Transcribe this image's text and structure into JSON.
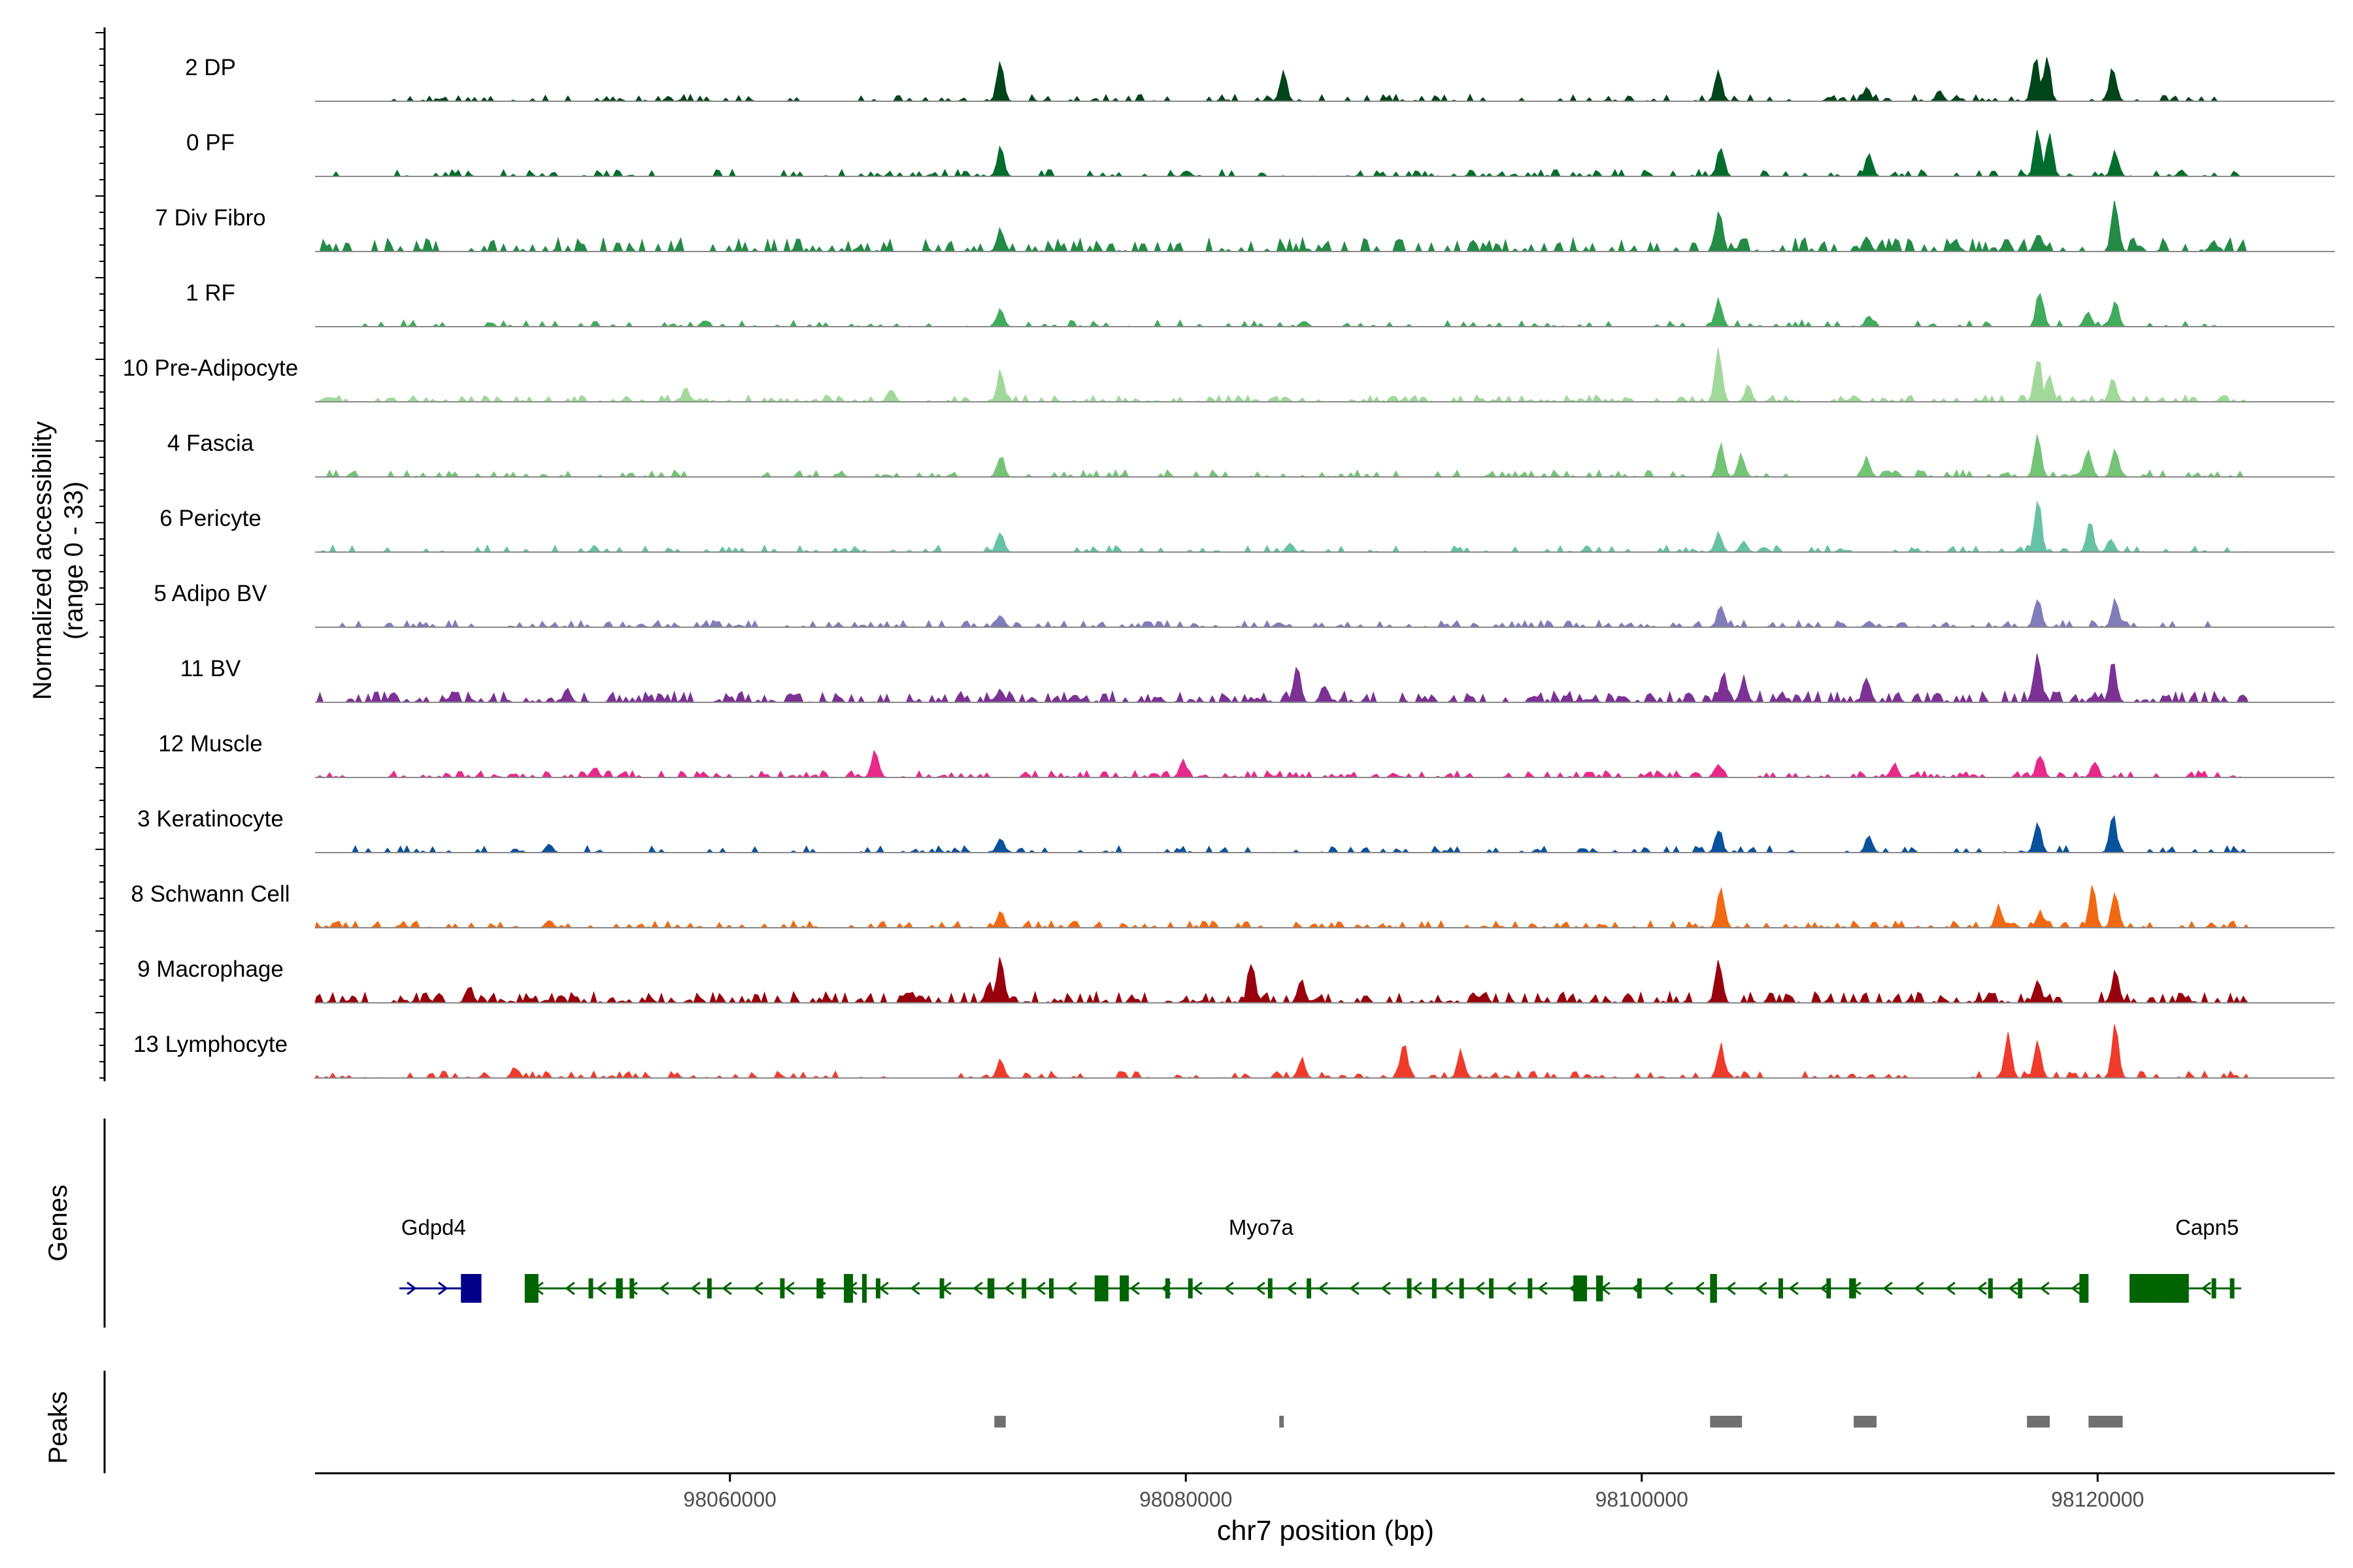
{
  "chart_data": {
    "type": "area",
    "title": "",
    "ylabel_line1": "Normalized accessibility",
    "ylabel_line2": "(range 0 - 33)",
    "genes_label": "Genes",
    "peaks_label": "Peaks",
    "xlabel": "chr7 position (bp)",
    "xlim": [
      98041800,
      98130400
    ],
    "xticks": [
      98060000,
      98080000,
      98100000,
      98120000
    ],
    "xtick_labels": [
      "98060000",
      "98080000",
      "98100000",
      "98120000"
    ],
    "track_range_start": 98041800,
    "track_range_end": 98126600,
    "tracks": [
      {
        "name": "2 DP",
        "color": "#00441b",
        "density": 0.3,
        "base": 0.05,
        "peaks": [
          [
            98071800,
            0.75
          ],
          [
            98084200,
            0.55
          ],
          [
            98103300,
            0.55
          ],
          [
            98117200,
            0.85
          ],
          [
            98117700,
            0.8
          ],
          [
            98120600,
            0.65
          ],
          [
            98109800,
            0.25
          ],
          [
            98113000,
            0.2
          ]
        ]
      },
      {
        "name": "0 PF",
        "color": "#006d2c",
        "density": 0.25,
        "base": 0.05,
        "peaks": [
          [
            98071800,
            0.55
          ],
          [
            98103400,
            0.55
          ],
          [
            98109900,
            0.4
          ],
          [
            98117300,
            0.85
          ],
          [
            98117800,
            0.8
          ],
          [
            98120700,
            0.45
          ],
          [
            98080000,
            0.1
          ]
        ]
      },
      {
        "name": "7 Div Fibro",
        "color": "#238b45",
        "density": 0.4,
        "base": 0.1,
        "peaks": [
          [
            98071800,
            0.45
          ],
          [
            98103300,
            0.75
          ],
          [
            98109800,
            0.3
          ],
          [
            98117300,
            0.35
          ],
          [
            98120700,
            0.95
          ],
          [
            98125000,
            0.2
          ]
        ]
      },
      {
        "name": "1 RF",
        "color": "#41ab5d",
        "density": 0.25,
        "base": 0.05,
        "peaks": [
          [
            98071800,
            0.3
          ],
          [
            98103300,
            0.55
          ],
          [
            98109900,
            0.2
          ],
          [
            98117400,
            0.7
          ],
          [
            98119500,
            0.3
          ],
          [
            98120700,
            0.45
          ]
        ]
      },
      {
        "name": "10 Pre-Adipocyte",
        "color": "#a1d99b",
        "density": 0.45,
        "base": 0.05,
        "peaks": [
          [
            98071800,
            0.55
          ],
          [
            98103300,
            1.0
          ],
          [
            98104600,
            0.3
          ],
          [
            98117300,
            0.85
          ],
          [
            98117800,
            0.55
          ],
          [
            98120600,
            0.45
          ],
          [
            98058000,
            0.25
          ],
          [
            98067000,
            0.25
          ]
        ]
      },
      {
        "name": "4 Fascia",
        "color": "#74c476",
        "density": 0.3,
        "base": 0.05,
        "peaks": [
          [
            98071800,
            0.4
          ],
          [
            98103400,
            0.6
          ],
          [
            98104300,
            0.4
          ],
          [
            98109800,
            0.35
          ],
          [
            98117300,
            0.75
          ],
          [
            98119500,
            0.55
          ],
          [
            98120700,
            0.5
          ]
        ]
      },
      {
        "name": "6 Pericyte",
        "color": "#66c2a4",
        "density": 0.25,
        "base": 0.05,
        "peaks": [
          [
            98071800,
            0.4
          ],
          [
            98084500,
            0.15
          ],
          [
            98103300,
            0.35
          ],
          [
            98104400,
            0.2
          ],
          [
            98117300,
            1.0
          ],
          [
            98119600,
            0.55
          ],
          [
            98120500,
            0.25
          ]
        ]
      },
      {
        "name": "5 Adipo BV",
        "color": "#807dba",
        "density": 0.35,
        "base": 0.05,
        "peaks": [
          [
            98071800,
            0.25
          ],
          [
            98103400,
            0.45
          ],
          [
            98117300,
            0.55
          ],
          [
            98120700,
            0.55
          ],
          [
            98084000,
            0.1
          ],
          [
            98109900,
            0.12
          ]
        ]
      },
      {
        "name": "11 BV",
        "color": "#7b3294",
        "density": 0.55,
        "base": 0.08,
        "peaks": [
          [
            98071800,
            0.25
          ],
          [
            98084800,
            0.65
          ],
          [
            98086000,
            0.35
          ],
          [
            98103500,
            0.55
          ],
          [
            98104400,
            0.45
          ],
          [
            98109800,
            0.5
          ],
          [
            98117300,
            0.95
          ],
          [
            98120600,
            0.75
          ],
          [
            98052800,
            0.25
          ]
        ]
      },
      {
        "name": "12 Muscle",
        "color": "#e7298a",
        "density": 0.4,
        "base": 0.05,
        "peaks": [
          [
            98066300,
            0.55
          ],
          [
            98079800,
            0.3
          ],
          [
            98103300,
            0.25
          ],
          [
            98117400,
            0.45
          ],
          [
            98119800,
            0.3
          ],
          [
            98054000,
            0.2
          ],
          [
            98111000,
            0.25
          ]
        ]
      },
      {
        "name": "3 Keratinocyte",
        "color": "#08519c",
        "density": 0.3,
        "base": 0.05,
        "peaks": [
          [
            98071800,
            0.3
          ],
          [
            98103300,
            0.45
          ],
          [
            98109900,
            0.3
          ],
          [
            98117300,
            0.55
          ],
          [
            98120600,
            0.65
          ],
          [
            98052000,
            0.15
          ]
        ]
      },
      {
        "name": "8 Schwann Cell",
        "color": "#f16913",
        "density": 0.35,
        "base": 0.05,
        "peaks": [
          [
            98071800,
            0.3
          ],
          [
            98103400,
            0.8
          ],
          [
            98115600,
            0.4
          ],
          [
            98117400,
            0.3
          ],
          [
            98119700,
            0.75
          ],
          [
            98120700,
            0.65
          ],
          [
            98052000,
            0.15
          ]
        ]
      },
      {
        "name": "9 Macrophage",
        "color": "#99000d",
        "density": 0.55,
        "base": 0.08,
        "peaks": [
          [
            98071800,
            0.85
          ],
          [
            98082800,
            0.8
          ],
          [
            98085000,
            0.45
          ],
          [
            98103300,
            0.75
          ],
          [
            98117300,
            0.45
          ],
          [
            98120700,
            0.55
          ],
          [
            98048500,
            0.3
          ],
          [
            98071300,
            0.35
          ]
        ]
      },
      {
        "name": "13 Lymphocyte",
        "color": "#ef3b2c",
        "density": 0.35,
        "base": 0.05,
        "peaks": [
          [
            98071800,
            0.35
          ],
          [
            98089500,
            0.65
          ],
          [
            98092000,
            0.5
          ],
          [
            98103400,
            0.6
          ],
          [
            98116000,
            0.75
          ],
          [
            98117300,
            0.65
          ],
          [
            98120700,
            0.95
          ],
          [
            98050500,
            0.2
          ],
          [
            98085000,
            0.35
          ]
        ]
      }
    ],
    "genes": [
      {
        "name": "Gdpd4",
        "color": "#00008b",
        "strand": "+",
        "start": 98045500,
        "end": 98049100,
        "label_pos": 98047000,
        "exons": [
          [
            98048200,
            98049100,
            1.0
          ]
        ]
      },
      {
        "name": "Myo7a",
        "color": "#006400",
        "strand": "-",
        "start": 98051000,
        "end": 98119600,
        "label_pos": 98083300,
        "exons": [
          [
            98051000,
            98051600,
            1.0
          ],
          [
            98053800,
            98054000,
            0.7
          ],
          [
            98055000,
            98055300,
            0.7
          ],
          [
            98055600,
            98055800,
            0.7
          ],
          [
            98059000,
            98059200,
            0.7
          ],
          [
            98062200,
            98062400,
            0.7
          ],
          [
            98063800,
            98064100,
            0.7
          ],
          [
            98065000,
            98065400,
            1.0
          ],
          [
            98065800,
            98066000,
            1.0
          ],
          [
            98066400,
            98066600,
            0.7
          ],
          [
            98069200,
            98069400,
            0.7
          ],
          [
            98071300,
            98071600,
            0.7
          ],
          [
            98072800,
            98073000,
            0.7
          ],
          [
            98074000,
            98074200,
            0.7
          ],
          [
            98076000,
            98076600,
            0.9
          ],
          [
            98077100,
            98077500,
            0.9
          ],
          [
            98079100,
            98079300,
            0.7
          ],
          [
            98080100,
            98080300,
            0.7
          ],
          [
            98083600,
            98083800,
            0.7
          ],
          [
            98085300,
            98085500,
            0.7
          ],
          [
            98089700,
            98089900,
            0.7
          ],
          [
            98090800,
            98091000,
            0.7
          ],
          [
            98092000,
            98092200,
            0.7
          ],
          [
            98093300,
            98093500,
            0.7
          ],
          [
            98095000,
            98095200,
            0.7
          ],
          [
            98097000,
            98097600,
            0.9
          ],
          [
            98098000,
            98098300,
            0.9
          ],
          [
            98099800,
            98100000,
            0.7
          ],
          [
            98103000,
            98103300,
            1.0
          ],
          [
            98106000,
            98106200,
            0.7
          ],
          [
            98108100,
            98108300,
            0.7
          ],
          [
            98109100,
            98109400,
            0.7
          ],
          [
            98115200,
            98115400,
            0.7
          ],
          [
            98116500,
            98116700,
            0.7
          ],
          [
            98119200,
            98119600,
            1.0
          ]
        ]
      },
      {
        "name": "Capn5",
        "color": "#006400",
        "strand": "-",
        "start": 98121400,
        "end": 98126300,
        "label_pos": 98124800,
        "exons": [
          [
            98121400,
            98124000,
            1.0
          ],
          [
            98125000,
            98125200,
            0.7
          ],
          [
            98125800,
            98126000,
            0.7
          ]
        ]
      }
    ],
    "peaks": [
      [
        98071600,
        98072100
      ],
      [
        98084100,
        98084300
      ],
      [
        98103000,
        98104400
      ],
      [
        98109300,
        98110300
      ],
      [
        98116900,
        98117900
      ],
      [
        98119600,
        98121100
      ]
    ]
  }
}
